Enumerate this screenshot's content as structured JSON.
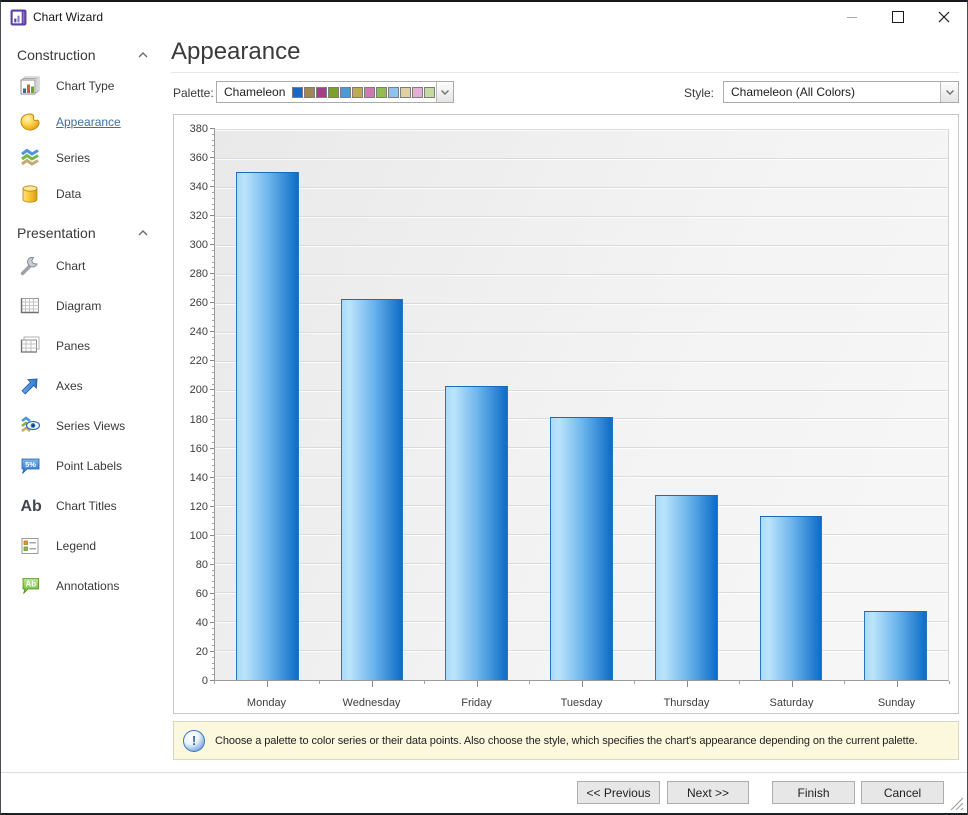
{
  "window": {
    "title": "Chart Wizard"
  },
  "sidebar": {
    "sections": [
      {
        "label": "Construction",
        "items": [
          {
            "label": "Chart Type",
            "icon": "chart-type-icon",
            "selected": false
          },
          {
            "label": "Appearance",
            "icon": "palette-icon",
            "selected": true
          },
          {
            "label": "Series",
            "icon": "series-icon",
            "selected": false
          },
          {
            "label": "Data",
            "icon": "data-cylinder-icon",
            "selected": false
          }
        ]
      },
      {
        "label": "Presentation",
        "items": [
          {
            "label": "Chart",
            "icon": "wrench-icon",
            "selected": false
          },
          {
            "label": "Diagram",
            "icon": "diagram-grid-icon",
            "selected": false
          },
          {
            "label": "Panes",
            "icon": "panes-icon",
            "selected": false
          },
          {
            "label": "Axes",
            "icon": "axes-arrow-icon",
            "selected": false
          },
          {
            "label": "Series Views",
            "icon": "series-views-eye-icon",
            "selected": false
          },
          {
            "label": "Point Labels",
            "icon": "point-labels-bubble-icon",
            "selected": false
          },
          {
            "label": "Chart Titles",
            "icon": "chart-titles-ab-icon",
            "selected": false
          },
          {
            "label": "Legend",
            "icon": "legend-icon",
            "selected": false
          },
          {
            "label": "Annotations",
            "icon": "annotations-bubble-icon",
            "selected": false
          }
        ]
      }
    ]
  },
  "main": {
    "title": "Appearance",
    "palette_label": "Palette:",
    "palette_value": "Chameleon",
    "palette_swatches": [
      "#1569c9",
      "#a08850",
      "#a83f85",
      "#7aa030",
      "#4f96d9",
      "#bfa959",
      "#cc7ab0",
      "#8fbc55",
      "#8fc3ec",
      "#ddd0a2",
      "#e2b0d5",
      "#c5d9a2"
    ],
    "style_label": "Style:",
    "style_value": "Chameleon (All Colors)"
  },
  "chart_data": {
    "type": "bar",
    "categories": [
      "Monday",
      "Wednesday",
      "Friday",
      "Tuesday",
      "Thursday",
      "Saturday",
      "Sunday"
    ],
    "values": [
      351,
      263,
      203,
      182,
      128,
      113,
      48
    ],
    "title": "",
    "xlabel": "",
    "ylabel": "",
    "ylim": [
      0,
      380
    ],
    "ytick_step": 20,
    "grid": true,
    "legend": false,
    "bar_color_light": "#a9dbf9",
    "bar_color_dark": "#0d6cc6",
    "bar_border": "#2677c2",
    "plot_bg": "#efefef"
  },
  "info_bar": {
    "text": "Choose a palette to color series or their data points. Also choose the style, which specifies the chart's appearance depending on the current palette."
  },
  "footer": {
    "buttons": [
      {
        "label": "<< Previous"
      },
      {
        "label": "Next >>"
      },
      {
        "label": "Finish"
      },
      {
        "label": "Cancel"
      }
    ]
  }
}
